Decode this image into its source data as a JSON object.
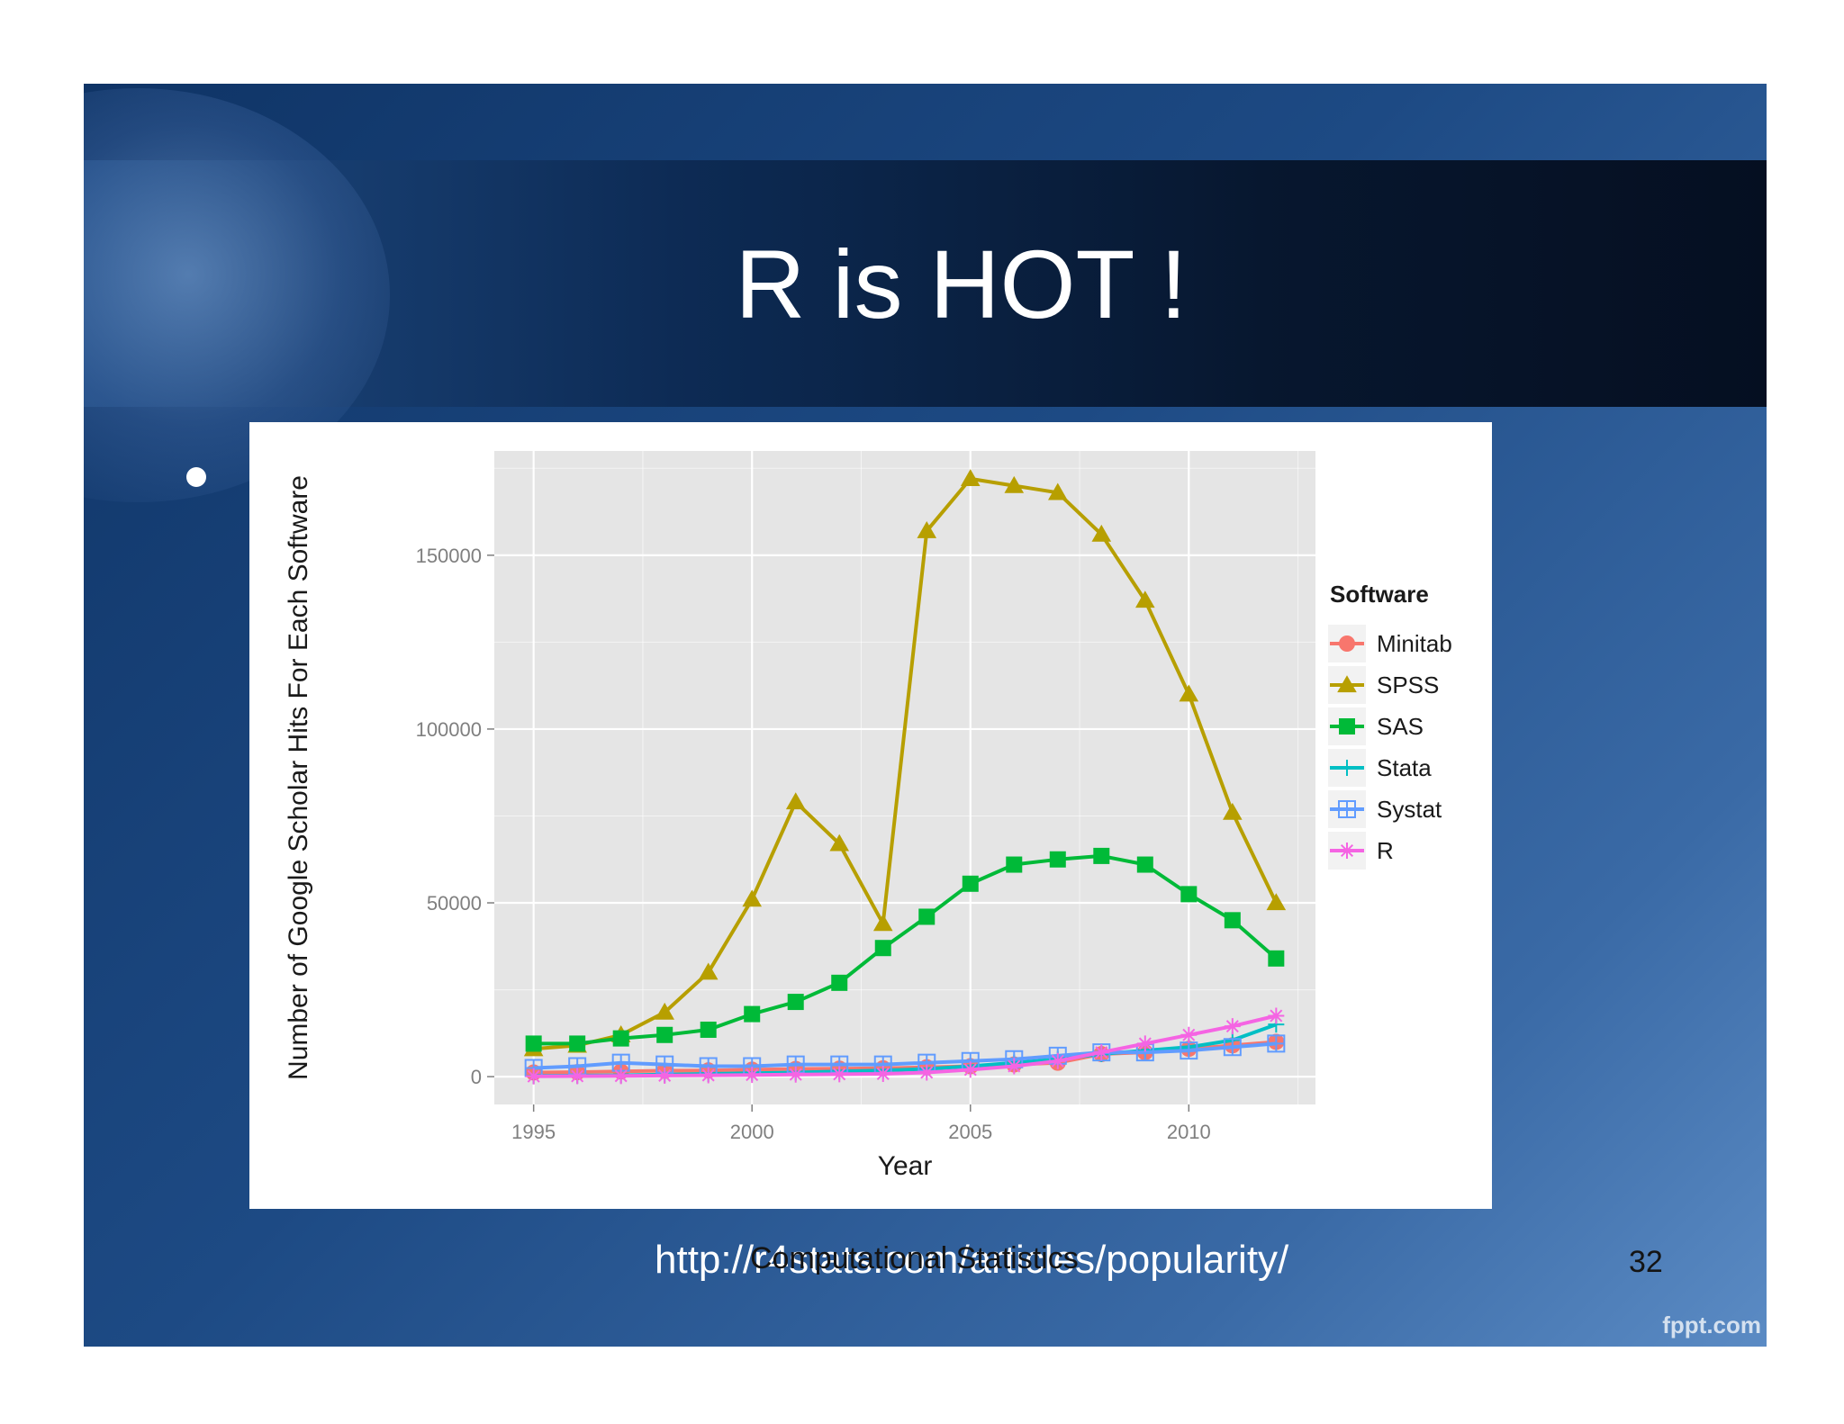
{
  "slide": {
    "title": "R is HOT !",
    "source_url": "http://r4stats.com/articles/popularity/",
    "footer_label": "Computational Statistics",
    "page_number": "32",
    "brand": "fppt.com"
  },
  "colors": {
    "Minitab": "#f8766d",
    "SPSS": "#b79f00",
    "SAS": "#00ba38",
    "Stata": "#00bfc4",
    "Systat": "#619cff",
    "R": "#f564e3",
    "panel_bg": "#e5e5e5",
    "grid": "#ffffff"
  },
  "chart_data": {
    "type": "line",
    "title": "",
    "xlabel": "Year",
    "ylabel": "Number of Google Scholar Hits For Each Software",
    "x": [
      1995,
      1996,
      1997,
      1998,
      1999,
      2000,
      2001,
      2002,
      2003,
      2004,
      2005,
      2006,
      2007,
      2008,
      2009,
      2010,
      2011,
      2012
    ],
    "xlim": [
      1994.1,
      2012.9
    ],
    "ylim": [
      -8000,
      180000
    ],
    "xticks": [
      1995,
      2000,
      2005,
      2010
    ],
    "xtick_labels": [
      "1995",
      "2000",
      "2005",
      "2010"
    ],
    "yticks": [
      0,
      50000,
      100000,
      150000
    ],
    "ytick_labels": [
      "0",
      "50000",
      "100000",
      "150000"
    ],
    "grid": true,
    "legend": {
      "title": "Software",
      "position": "right"
    },
    "series": [
      {
        "name": "Minitab",
        "marker": "circle",
        "values": [
          1200,
          1300,
          1500,
          1700,
          1800,
          2000,
          2200,
          2300,
          2400,
          2700,
          3000,
          3500,
          4000,
          6500,
          7000,
          8000,
          9000,
          10000
        ]
      },
      {
        "name": "SPSS",
        "marker": "triangle",
        "values": [
          8000,
          9000,
          12000,
          18500,
          30000,
          51000,
          79000,
          67000,
          44000,
          157000,
          172000,
          170000,
          168000,
          156000,
          137000,
          110000,
          76000,
          50000
        ]
      },
      {
        "name": "SAS",
        "marker": "square",
        "values": [
          9500,
          9500,
          11000,
          12000,
          13500,
          18000,
          21500,
          27000,
          37000,
          46000,
          55500,
          61000,
          62500,
          63500,
          61000,
          52500,
          45000,
          34000
        ]
      },
      {
        "name": "Stata",
        "marker": "plus",
        "values": [
          200,
          300,
          400,
          600,
          800,
          1000,
          1200,
          1500,
          1800,
          2200,
          3000,
          4000,
          5000,
          6500,
          7500,
          8500,
          10500,
          15000
        ]
      },
      {
        "name": "Systat",
        "marker": "boxcross",
        "values": [
          2500,
          3000,
          4000,
          3500,
          3000,
          3000,
          3500,
          3500,
          3500,
          4000,
          4500,
          5000,
          6000,
          7000,
          7000,
          7500,
          8500,
          9500
        ]
      },
      {
        "name": "R",
        "marker": "star",
        "values": [
          100,
          150,
          200,
          300,
          400,
          500,
          600,
          700,
          800,
          1200,
          2000,
          3000,
          4500,
          7000,
          9500,
          12000,
          14500,
          17500
        ]
      }
    ]
  }
}
